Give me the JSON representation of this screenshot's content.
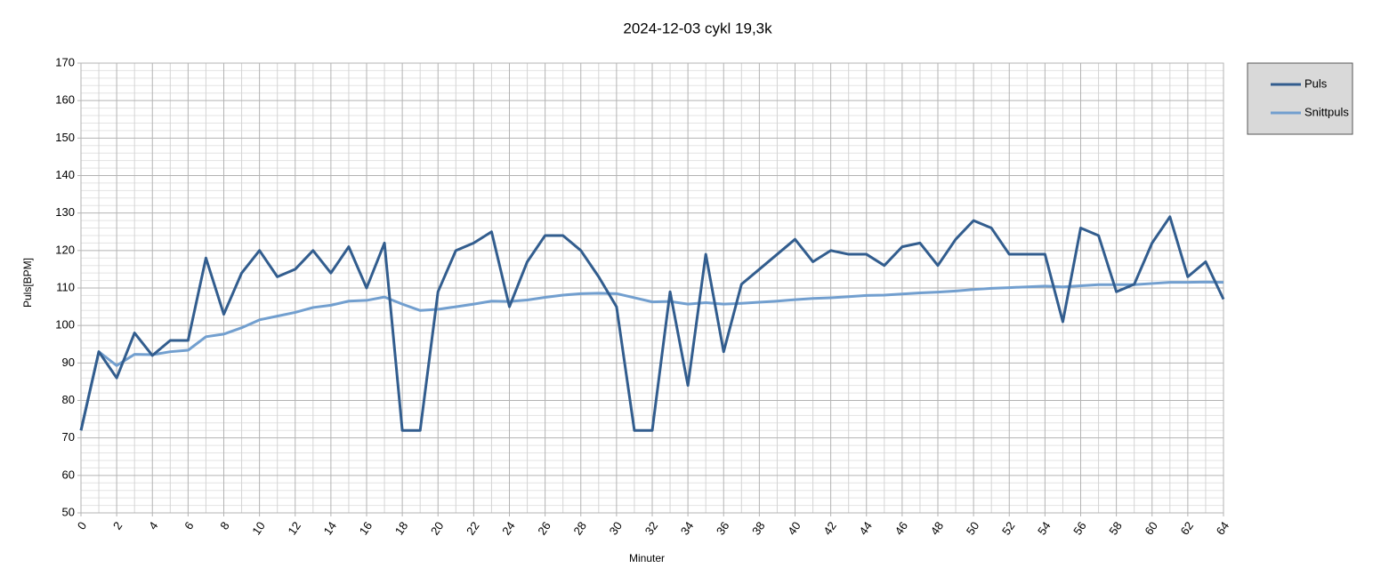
{
  "chart_data": {
    "type": "line",
    "title": "2024-12-03 cykl 19,3k",
    "xlabel": "Minuter",
    "ylabel": "Puls[BPM]",
    "x": [
      0,
      1,
      2,
      3,
      4,
      5,
      6,
      7,
      8,
      9,
      10,
      11,
      12,
      13,
      14,
      15,
      16,
      17,
      18,
      19,
      20,
      21,
      22,
      23,
      24,
      25,
      26,
      27,
      28,
      29,
      30,
      31,
      32,
      33,
      34,
      35,
      36,
      37,
      38,
      39,
      40,
      41,
      42,
      43,
      44,
      45,
      46,
      47,
      48,
      49,
      50,
      51,
      52,
      53,
      54,
      55,
      56,
      57,
      58,
      59,
      60,
      61,
      62,
      63,
      64
    ],
    "series": [
      {
        "name": "Puls",
        "color": "#325d8e",
        "values": [
          72,
          93,
          86,
          98,
          92,
          96,
          96,
          118,
          103,
          114,
          120,
          113,
          115,
          120,
          114,
          121,
          110,
          122,
          72,
          72,
          109,
          120,
          122,
          125,
          105,
          117,
          124,
          124,
          120,
          113,
          105,
          72,
          72,
          109,
          84,
          119,
          93,
          111,
          115,
          119,
          123,
          117,
          120,
          119,
          119,
          116,
          121,
          122,
          116,
          123,
          128,
          126,
          119,
          119,
          119,
          101,
          126,
          124,
          109,
          111,
          122,
          129,
          113,
          117,
          107
        ]
      },
      {
        "name": "Snittpuls",
        "color": "#729fcf",
        "values": [
          72,
          93,
          89.3,
          92.3,
          92.2,
          93,
          93.4,
          97,
          97.7,
          99.4,
          101.5,
          102.5,
          103.5,
          104.8,
          105.4,
          106.5,
          106.7,
          107.6,
          105.7,
          104,
          104.3,
          105,
          105.7,
          106.5,
          106.4,
          106.8,
          107.5,
          108.1,
          108.5,
          108.6,
          108.5,
          107.4,
          106.3,
          106.4,
          105.7,
          106.1,
          105.7,
          105.9,
          106.2,
          106.5,
          106.9,
          107.2,
          107.4,
          107.7,
          108,
          108.1,
          108.4,
          108.7,
          108.9,
          109.2,
          109.6,
          109.9,
          110.1,
          110.3,
          110.5,
          110.3,
          110.6,
          110.9,
          110.9,
          110.9,
          111.2,
          111.5,
          111.5,
          111.6,
          111.5
        ]
      }
    ],
    "xlim": [
      0,
      64
    ],
    "xticks": [
      0,
      2,
      4,
      6,
      8,
      10,
      12,
      14,
      16,
      18,
      20,
      22,
      24,
      26,
      28,
      30,
      32,
      34,
      36,
      38,
      40,
      42,
      44,
      46,
      48,
      50,
      52,
      54,
      56,
      58,
      60,
      62,
      64
    ],
    "ylim": [
      50,
      170
    ],
    "yticks": [
      50,
      60,
      70,
      80,
      90,
      100,
      110,
      120,
      130,
      140,
      150,
      160,
      170
    ],
    "grid": true,
    "legend": "right"
  }
}
